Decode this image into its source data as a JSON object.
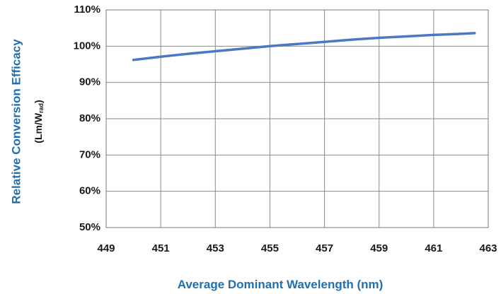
{
  "chart_data": {
    "type": "line",
    "xlabel": "Average Dominant Wavelength (nm)",
    "ylabel": "Relative Conversion Efficacy",
    "ylabel_unit": "(Lm/W",
    "ylabel_unit_sub": "rad",
    "ylabel_unit_close": ")",
    "xlim": [
      449,
      463
    ],
    "ylim": [
      50,
      110
    ],
    "x_ticks": [
      449,
      451,
      453,
      455,
      457,
      459,
      461,
      463
    ],
    "y_ticks": [
      50,
      60,
      70,
      80,
      90,
      100,
      110
    ],
    "x_tick_labels": [
      "449",
      "451",
      "453",
      "455",
      "457",
      "459",
      "461",
      "463"
    ],
    "y_tick_labels": [
      "50%",
      "60%",
      "70%",
      "80%",
      "90%",
      "100%",
      "110%"
    ],
    "grid": true,
    "series": [
      {
        "color": "#4a78c2",
        "x": [
          450,
          451,
          452,
          453,
          454,
          455,
          456,
          457,
          458,
          459,
          460,
          461,
          462,
          462.5
        ],
        "y": [
          96.2,
          97.1,
          97.9,
          98.6,
          99.3,
          100.0,
          100.6,
          101.2,
          101.8,
          102.3,
          102.7,
          103.1,
          103.4,
          103.6
        ]
      }
    ]
  }
}
